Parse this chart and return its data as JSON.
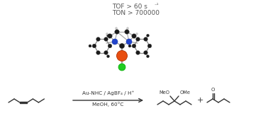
{
  "background_color": "#ffffff",
  "tof_line": "TOF > 60 s⁻¹",
  "ton_line": "TON > 700000",
  "arrow_label_top": "Au-NHC / AgBF₄ / H⁺",
  "arrow_label_bottom": "MeOH, 60°C",
  "text_color": "#555555",
  "arrow_color": "#333333",
  "gold_color": "#e84e10",
  "chlorine_color": "#22cc22",
  "nitrogen_color": "#2244cc",
  "carbon_color": "#1a1a1a",
  "bond_color": "#aaaaaa",
  "dark_bond_color": "#666666",
  "line_color": "#333333"
}
